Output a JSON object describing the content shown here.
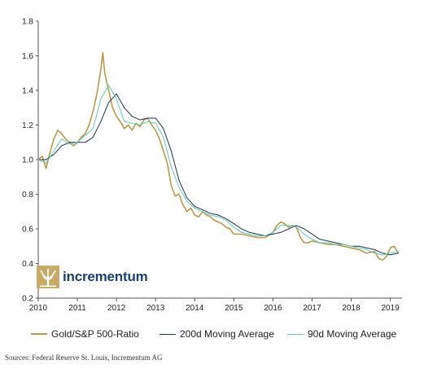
{
  "chart_data": {
    "type": "line",
    "title": "",
    "xlabel": "",
    "ylabel": "",
    "xlim": [
      2010.0,
      2019.3
    ],
    "ylim": [
      0.2,
      1.8
    ],
    "x_ticks": [
      2010,
      2011,
      2012,
      2013,
      2014,
      2015,
      2016,
      2017,
      2018,
      2019
    ],
    "x_tick_labels": [
      "2010",
      "2011",
      "2012",
      "2013",
      "2014",
      "2015",
      "2016",
      "2017",
      "2018",
      "2019"
    ],
    "y_ticks": [
      0.2,
      0.4,
      0.6,
      0.8,
      1.0,
      1.2,
      1.4,
      1.6,
      1.8
    ],
    "y_tick_labels": [
      "0.2",
      "0.4",
      "0.6",
      "0.8",
      "1.0",
      "1.2",
      "1.4",
      "1.6",
      "1.8"
    ],
    "grid": false,
    "legend_position": "bottom",
    "series": [
      {
        "name": "Gold/S&P 500-Ratio",
        "color": "#b59a55",
        "x": [
          2010.0,
          2010.1,
          2010.2,
          2010.3,
          2010.4,
          2010.5,
          2010.6,
          2010.7,
          2010.8,
          2010.9,
          2011.0,
          2011.1,
          2011.2,
          2011.3,
          2011.4,
          2011.5,
          2011.6,
          2011.65,
          2011.7,
          2011.75,
          2011.8,
          2011.9,
          2012.0,
          2012.1,
          2012.2,
          2012.3,
          2012.4,
          2012.5,
          2012.6,
          2012.7,
          2012.8,
          2012.9,
          2013.0,
          2013.1,
          2013.2,
          2013.3,
          2013.4,
          2013.5,
          2013.6,
          2013.7,
          2013.8,
          2013.9,
          2014.0,
          2014.1,
          2014.2,
          2014.3,
          2014.4,
          2014.5,
          2014.6,
          2014.7,
          2014.8,
          2014.9,
          2015.0,
          2015.2,
          2015.4,
          2015.6,
          2015.8,
          2016.0,
          2016.1,
          2016.2,
          2016.3,
          2016.4,
          2016.5,
          2016.6,
          2016.7,
          2016.8,
          2016.9,
          2017.0,
          2017.2,
          2017.4,
          2017.6,
          2017.8,
          2018.0,
          2018.2,
          2018.4,
          2018.6,
          2018.7,
          2018.8,
          2018.9,
          2019.0,
          2019.1,
          2019.2
        ],
        "y": [
          1.0,
          1.02,
          0.95,
          1.04,
          1.12,
          1.17,
          1.15,
          1.12,
          1.1,
          1.08,
          1.1,
          1.13,
          1.15,
          1.2,
          1.28,
          1.38,
          1.52,
          1.62,
          1.5,
          1.45,
          1.4,
          1.3,
          1.25,
          1.22,
          1.18,
          1.2,
          1.17,
          1.21,
          1.19,
          1.23,
          1.24,
          1.2,
          1.17,
          1.12,
          1.05,
          0.98,
          0.85,
          0.79,
          0.8,
          0.74,
          0.7,
          0.72,
          0.68,
          0.67,
          0.7,
          0.68,
          0.67,
          0.65,
          0.64,
          0.63,
          0.61,
          0.6,
          0.57,
          0.57,
          0.56,
          0.55,
          0.55,
          0.58,
          0.62,
          0.64,
          0.63,
          0.61,
          0.62,
          0.61,
          0.55,
          0.52,
          0.52,
          0.53,
          0.52,
          0.51,
          0.51,
          0.5,
          0.49,
          0.48,
          0.46,
          0.47,
          0.43,
          0.42,
          0.44,
          0.49,
          0.5,
          0.46
        ]
      },
      {
        "name": "200d Moving Average",
        "color": "#1f3250",
        "x": [
          2010.0,
          2010.2,
          2010.4,
          2010.6,
          2010.8,
          2011.0,
          2011.2,
          2011.4,
          2011.6,
          2011.8,
          2012.0,
          2012.2,
          2012.4,
          2012.6,
          2012.8,
          2013.0,
          2013.2,
          2013.4,
          2013.6,
          2013.8,
          2014.0,
          2014.2,
          2014.4,
          2014.6,
          2014.8,
          2015.0,
          2015.2,
          2015.4,
          2015.6,
          2015.8,
          2016.0,
          2016.2,
          2016.4,
          2016.6,
          2016.8,
          2017.0,
          2017.2,
          2017.4,
          2017.6,
          2017.8,
          2018.0,
          2018.2,
          2018.4,
          2018.6,
          2018.8,
          2019.0,
          2019.2
        ],
        "y": [
          1.0,
          1.0,
          1.03,
          1.08,
          1.1,
          1.1,
          1.1,
          1.13,
          1.22,
          1.33,
          1.38,
          1.3,
          1.25,
          1.23,
          1.24,
          1.24,
          1.18,
          1.05,
          0.88,
          0.78,
          0.73,
          0.71,
          0.69,
          0.68,
          0.66,
          0.63,
          0.6,
          0.58,
          0.57,
          0.56,
          0.57,
          0.58,
          0.6,
          0.62,
          0.6,
          0.57,
          0.54,
          0.53,
          0.52,
          0.51,
          0.5,
          0.5,
          0.49,
          0.48,
          0.46,
          0.45,
          0.46
        ]
      },
      {
        "name": "90d Moving Average",
        "color": "#6bc3ad",
        "x": [
          2010.0,
          2010.2,
          2010.4,
          2010.6,
          2010.8,
          2011.0,
          2011.2,
          2011.4,
          2011.6,
          2011.8,
          2012.0,
          2012.2,
          2012.4,
          2012.6,
          2012.8,
          2013.0,
          2013.2,
          2013.4,
          2013.6,
          2013.8,
          2014.0,
          2014.2,
          2014.4,
          2014.6,
          2014.8,
          2015.0,
          2015.2,
          2015.4,
          2015.6,
          2015.8,
          2016.0,
          2016.2,
          2016.4,
          2016.6,
          2016.8,
          2017.0,
          2017.2,
          2017.4,
          2017.6,
          2017.8,
          2018.0,
          2018.2,
          2018.4,
          2018.6,
          2018.8,
          2019.0,
          2019.2
        ],
        "y": [
          1.0,
          0.98,
          1.05,
          1.12,
          1.09,
          1.1,
          1.14,
          1.18,
          1.35,
          1.43,
          1.35,
          1.22,
          1.21,
          1.2,
          1.22,
          1.21,
          1.13,
          0.96,
          0.84,
          0.76,
          0.72,
          0.7,
          0.68,
          0.67,
          0.65,
          0.61,
          0.58,
          0.57,
          0.56,
          0.56,
          0.58,
          0.62,
          0.62,
          0.61,
          0.57,
          0.54,
          0.52,
          0.52,
          0.51,
          0.51,
          0.5,
          0.49,
          0.48,
          0.46,
          0.45,
          0.46,
          0.47
        ]
      }
    ]
  },
  "legend": {
    "items": [
      {
        "label": "Gold/S&P 500-Ratio",
        "color": "#b59a55"
      },
      {
        "label": "200d Moving Average",
        "color": "#1f3250"
      },
      {
        "label": "90d Moving Average",
        "color": "#6bc3ad"
      }
    ]
  },
  "logo": {
    "text": "incrementum",
    "icon": "tree-logo-icon",
    "color": "#1f3f6e"
  },
  "source_note": "Sources: Federal Reserve St. Louis, Incrementum AG"
}
